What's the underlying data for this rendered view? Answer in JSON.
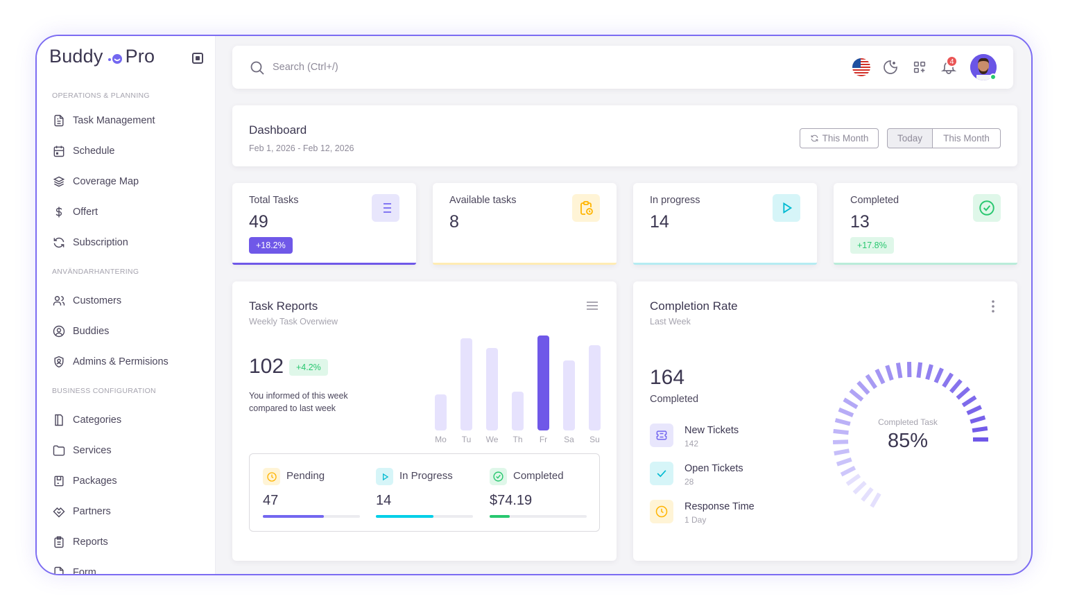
{
  "brand": {
    "name_left": "Buddy",
    "name_right": "Pro"
  },
  "sidebar": {
    "sections": [
      {
        "title": "OPERATIONS & PLANNING",
        "items": [
          {
            "label": "Task Management",
            "icon": "file-text-icon"
          },
          {
            "label": "Schedule",
            "icon": "calendar-icon"
          },
          {
            "label": "Coverage Map",
            "icon": "layers-icon"
          },
          {
            "label": "Offert",
            "icon": "dollar-icon"
          },
          {
            "label": "Subscription",
            "icon": "refresh-icon"
          }
        ]
      },
      {
        "title": "ANVÄNDARHANTERING",
        "items": [
          {
            "label": "Customers",
            "icon": "users-icon"
          },
          {
            "label": "Buddies",
            "icon": "user-circle-icon"
          },
          {
            "label": "Admins & Permisions",
            "icon": "shield-user-icon"
          }
        ]
      },
      {
        "title": "BUSINESS CONFIGURATION",
        "items": [
          {
            "label": "Categories",
            "icon": "book-icon"
          },
          {
            "label": "Services",
            "icon": "folder-icon"
          },
          {
            "label": "Packages",
            "icon": "package-icon"
          },
          {
            "label": "Partners",
            "icon": "handshake-icon"
          },
          {
            "label": "Reports",
            "icon": "clipboard-icon"
          },
          {
            "label": "Form",
            "icon": "form-icon"
          }
        ]
      }
    ]
  },
  "topbar": {
    "search_placeholder": "Search (Ctrl+/)",
    "notification_count": "4",
    "icons": [
      "us-flag-icon",
      "moon-icon",
      "apps-icon",
      "bell-icon",
      "avatar"
    ]
  },
  "dashboard": {
    "title": "Dashboard",
    "range": "Feb 1, 2026 - Feb 12, 2026",
    "btn_refresh": "This Month",
    "btn_today": "Today",
    "btn_month": "This Month"
  },
  "stats": [
    {
      "label": "Total Tasks",
      "value": "49",
      "pill": "+18.2%",
      "icon": "list-icon",
      "accent": "#7367f0"
    },
    {
      "label": "Available tasks",
      "value": "8",
      "pill": "",
      "icon": "clipboard-clock-icon",
      "accent": "#ffc94d"
    },
    {
      "label": "In progress",
      "value": "14",
      "pill": "",
      "icon": "play-icon",
      "accent": "#00cfe8"
    },
    {
      "label": "Completed",
      "value": "13",
      "pill": "+17.8%",
      "icon": "check-circle-icon",
      "accent": "#28c76f"
    }
  ],
  "task_reports": {
    "title": "Task Reports",
    "subtitle": "Weekly Task Overwiew",
    "big_value": "102",
    "pill": "+4.2%",
    "description": "You informed of this week compared to last week",
    "summary": [
      {
        "label": "Pending",
        "value": "47",
        "progress": 0.63,
        "color": "#7367f0",
        "icon": "clock-icon"
      },
      {
        "label": "In Progress",
        "value": "14",
        "progress": 0.59,
        "color": "#00cfe8",
        "icon": "play-icon"
      },
      {
        "label": "Completed",
        "value": "$74.19",
        "progress": 0.21,
        "color": "#28c76f",
        "icon": "check-circle-icon"
      }
    ]
  },
  "chart_data": {
    "type": "bar",
    "categories": [
      "Mo",
      "Tu",
      "We",
      "Th",
      "Fr",
      "Sa",
      "Su"
    ],
    "values": [
      38,
      97,
      87,
      41,
      100,
      74,
      90
    ],
    "highlight_index": 4,
    "ylim": [
      0,
      100
    ]
  },
  "completion": {
    "title": "Completion Rate",
    "subtitle": "Last Week",
    "big_value": "164",
    "big_label": "Completed",
    "tickets": [
      {
        "label": "New Tickets",
        "value": "142",
        "icon": "ticket-icon",
        "color": "#7367f0"
      },
      {
        "label": "Open Tickets",
        "value": "28",
        "icon": "check-icon",
        "color": "#00cfe8"
      },
      {
        "label": "Response Time",
        "value": "1 Day",
        "icon": "clock-icon",
        "color": "#ffc94d"
      }
    ],
    "gauge_label": "Completed Task",
    "gauge_value": "85%",
    "gauge_fraction": 0.85
  }
}
